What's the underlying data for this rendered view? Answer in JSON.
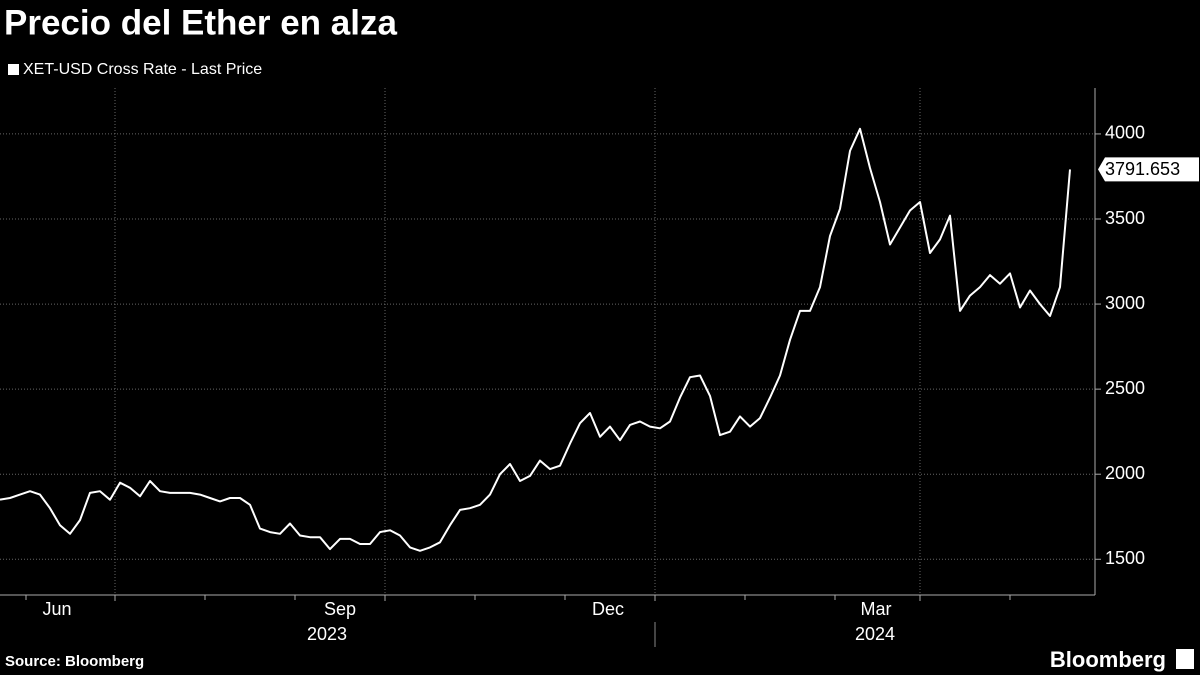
{
  "chart_data": {
    "type": "line",
    "title": "Precio del Ether en alza",
    "series": [
      {
        "name": "XET-USD Cross Rate - Last Price",
        "color": "#ffffff",
        "values": [
          1850,
          1860,
          1880,
          1900,
          1880,
          1800,
          1700,
          1650,
          1730,
          1890,
          1900,
          1850,
          1950,
          1920,
          1870,
          1960,
          1900,
          1890,
          1890,
          1890,
          1880,
          1860,
          1840,
          1860,
          1860,
          1820,
          1680,
          1660,
          1650,
          1710,
          1640,
          1630,
          1630,
          1560,
          1620,
          1620,
          1590,
          1590,
          1660,
          1670,
          1640,
          1570,
          1550,
          1570,
          1600,
          1700,
          1790,
          1800,
          1820,
          1880,
          2000,
          2060,
          1960,
          1990,
          2080,
          2030,
          2050,
          2180,
          2300,
          2360,
          2220,
          2280,
          2200,
          2290,
          2310,
          2280,
          2270,
          2310,
          2450,
          2570,
          2580,
          2460,
          2230,
          2250,
          2340,
          2280,
          2330,
          2450,
          2580,
          2790,
          2960,
          2960,
          3100,
          3400,
          3560,
          3900,
          4030,
          3800,
          3600,
          3350,
          3450,
          3550,
          3600,
          3300,
          3380,
          3520,
          2960,
          3050,
          3100,
          3170,
          3120,
          3180,
          2980,
          3080,
          3000,
          2930,
          3100,
          3791.653
        ]
      }
    ],
    "xlim": [
      0,
      109.5
    ],
    "xticks": [
      {
        "value": 5.7,
        "label": "Jun"
      },
      {
        "value": 34,
        "label": "Sep"
      },
      {
        "value": 60.8,
        "label": "Dec"
      },
      {
        "value": 87.6,
        "label": "Mar"
      }
    ],
    "xgrid": [
      11.5,
      38.5,
      65.5,
      92
    ],
    "xminor": [
      2.6,
      20.5,
      29.5,
      47.5,
      56.5,
      74.5,
      83.5,
      101
    ],
    "years": [
      {
        "value": 32.7,
        "label": "2023"
      },
      {
        "value": 87.5,
        "label": "2024"
      }
    ],
    "year_divider": 65.5,
    "ylim": [
      1290,
      4270
    ],
    "yticks": [
      1500,
      2000,
      2500,
      3000,
      3500,
      4000
    ],
    "grid": true,
    "source": "Source: Bloomberg",
    "brand": "Bloomberg"
  }
}
